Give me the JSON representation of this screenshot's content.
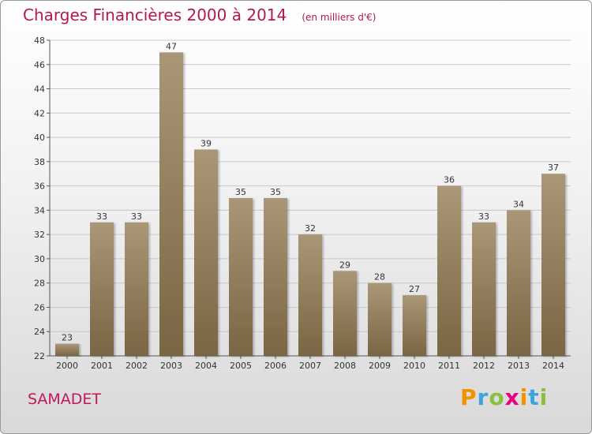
{
  "header": {
    "title": "Charges Financières 2000 à 2014",
    "unit": "(en milliers d'€)"
  },
  "commune": "SAMADET",
  "logo": {
    "text": "Proxiti",
    "letters": [
      {
        "char": "P",
        "color": "#f39200"
      },
      {
        "char": "r",
        "color": "#3aa6dd"
      },
      {
        "char": "o",
        "color": "#8bbf3f"
      },
      {
        "char": "x",
        "color": "#e6007e"
      },
      {
        "char": "i",
        "color": "#f39200"
      },
      {
        "char": "t",
        "color": "#3aa6dd"
      },
      {
        "char": "i",
        "color": "#8bbf3f"
      }
    ]
  },
  "colors": {
    "title": "#b5174f",
    "commune": "#c2185b",
    "bar_top": "#a99777",
    "bar_bottom": "#7a6543",
    "grid": "#c8c8c8"
  },
  "chart_data": {
    "type": "bar",
    "title": "Charges Financières 2000 à 2014",
    "subtitle": "(en milliers d'€)",
    "categories": [
      "2000",
      "2001",
      "2002",
      "2003",
      "2004",
      "2005",
      "2006",
      "2007",
      "2008",
      "2009",
      "2010",
      "2011",
      "2012",
      "2013",
      "2014"
    ],
    "values": [
      23,
      33,
      33,
      47,
      39,
      35,
      35,
      32,
      29,
      28,
      27,
      36,
      33,
      34,
      37
    ],
    "ylim": [
      22,
      48
    ],
    "yticks": [
      22,
      24,
      26,
      28,
      30,
      32,
      34,
      36,
      38,
      40,
      42,
      44,
      46,
      48
    ],
    "grid": true,
    "data_labels": true,
    "legend": "none",
    "xlabel": "",
    "ylabel": ""
  }
}
